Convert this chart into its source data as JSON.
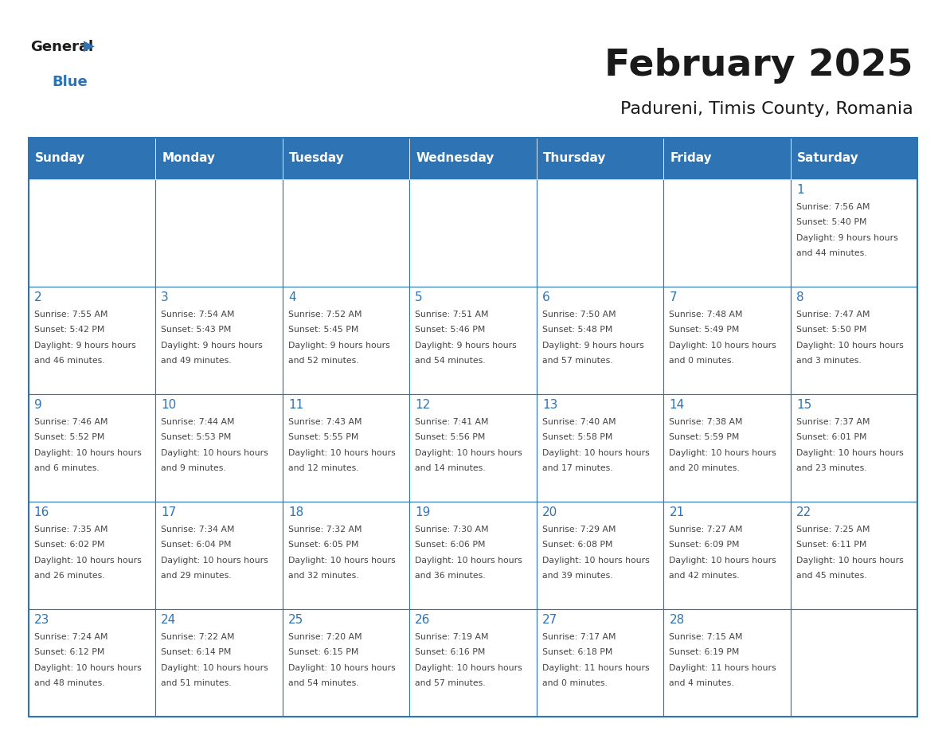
{
  "title": "February 2025",
  "subtitle": "Padureni, Timis County, Romania",
  "days_of_week": [
    "Sunday",
    "Monday",
    "Tuesday",
    "Wednesday",
    "Thursday",
    "Friday",
    "Saturday"
  ],
  "header_bg": "#2E74B5",
  "header_text": "#FFFFFF",
  "cell_bg_light": "#FFFFFF",
  "border_color": "#2E74B5",
  "day_num_color": "#2E74B5",
  "text_color": "#444444",
  "title_color": "#1a1a1a",
  "weeks": [
    [
      null,
      null,
      null,
      null,
      null,
      null,
      1
    ],
    [
      2,
      3,
      4,
      5,
      6,
      7,
      8
    ],
    [
      9,
      10,
      11,
      12,
      13,
      14,
      15
    ],
    [
      16,
      17,
      18,
      19,
      20,
      21,
      22
    ],
    [
      23,
      24,
      25,
      26,
      27,
      28,
      null
    ]
  ],
  "cell_data": {
    "1": {
      "sunrise": "7:56 AM",
      "sunset": "5:40 PM",
      "daylight": "9 hours and 44 minutes."
    },
    "2": {
      "sunrise": "7:55 AM",
      "sunset": "5:42 PM",
      "daylight": "9 hours and 46 minutes."
    },
    "3": {
      "sunrise": "7:54 AM",
      "sunset": "5:43 PM",
      "daylight": "9 hours and 49 minutes."
    },
    "4": {
      "sunrise": "7:52 AM",
      "sunset": "5:45 PM",
      "daylight": "9 hours and 52 minutes."
    },
    "5": {
      "sunrise": "7:51 AM",
      "sunset": "5:46 PM",
      "daylight": "9 hours and 54 minutes."
    },
    "6": {
      "sunrise": "7:50 AM",
      "sunset": "5:48 PM",
      "daylight": "9 hours and 57 minutes."
    },
    "7": {
      "sunrise": "7:48 AM",
      "sunset": "5:49 PM",
      "daylight": "10 hours and 0 minutes."
    },
    "8": {
      "sunrise": "7:47 AM",
      "sunset": "5:50 PM",
      "daylight": "10 hours and 3 minutes."
    },
    "9": {
      "sunrise": "7:46 AM",
      "sunset": "5:52 PM",
      "daylight": "10 hours and 6 minutes."
    },
    "10": {
      "sunrise": "7:44 AM",
      "sunset": "5:53 PM",
      "daylight": "10 hours and 9 minutes."
    },
    "11": {
      "sunrise": "7:43 AM",
      "sunset": "5:55 PM",
      "daylight": "10 hours and 12 minutes."
    },
    "12": {
      "sunrise": "7:41 AM",
      "sunset": "5:56 PM",
      "daylight": "10 hours and 14 minutes."
    },
    "13": {
      "sunrise": "7:40 AM",
      "sunset": "5:58 PM",
      "daylight": "10 hours and 17 minutes."
    },
    "14": {
      "sunrise": "7:38 AM",
      "sunset": "5:59 PM",
      "daylight": "10 hours and 20 minutes."
    },
    "15": {
      "sunrise": "7:37 AM",
      "sunset": "6:01 PM",
      "daylight": "10 hours and 23 minutes."
    },
    "16": {
      "sunrise": "7:35 AM",
      "sunset": "6:02 PM",
      "daylight": "10 hours and 26 minutes."
    },
    "17": {
      "sunrise": "7:34 AM",
      "sunset": "6:04 PM",
      "daylight": "10 hours and 29 minutes."
    },
    "18": {
      "sunrise": "7:32 AM",
      "sunset": "6:05 PM",
      "daylight": "10 hours and 32 minutes."
    },
    "19": {
      "sunrise": "7:30 AM",
      "sunset": "6:06 PM",
      "daylight": "10 hours and 36 minutes."
    },
    "20": {
      "sunrise": "7:29 AM",
      "sunset": "6:08 PM",
      "daylight": "10 hours and 39 minutes."
    },
    "21": {
      "sunrise": "7:27 AM",
      "sunset": "6:09 PM",
      "daylight": "10 hours and 42 minutes."
    },
    "22": {
      "sunrise": "7:25 AM",
      "sunset": "6:11 PM",
      "daylight": "10 hours and 45 minutes."
    },
    "23": {
      "sunrise": "7:24 AM",
      "sunset": "6:12 PM",
      "daylight": "10 hours and 48 minutes."
    },
    "24": {
      "sunrise": "7:22 AM",
      "sunset": "6:14 PM",
      "daylight": "10 hours and 51 minutes."
    },
    "25": {
      "sunrise": "7:20 AM",
      "sunset": "6:15 PM",
      "daylight": "10 hours and 54 minutes."
    },
    "26": {
      "sunrise": "7:19 AM",
      "sunset": "6:16 PM",
      "daylight": "10 hours and 57 minutes."
    },
    "27": {
      "sunrise": "7:17 AM",
      "sunset": "6:18 PM",
      "daylight": "11 hours and 0 minutes."
    },
    "28": {
      "sunrise": "7:15 AM",
      "sunset": "6:19 PM",
      "daylight": "11 hours and 4 minutes."
    }
  }
}
